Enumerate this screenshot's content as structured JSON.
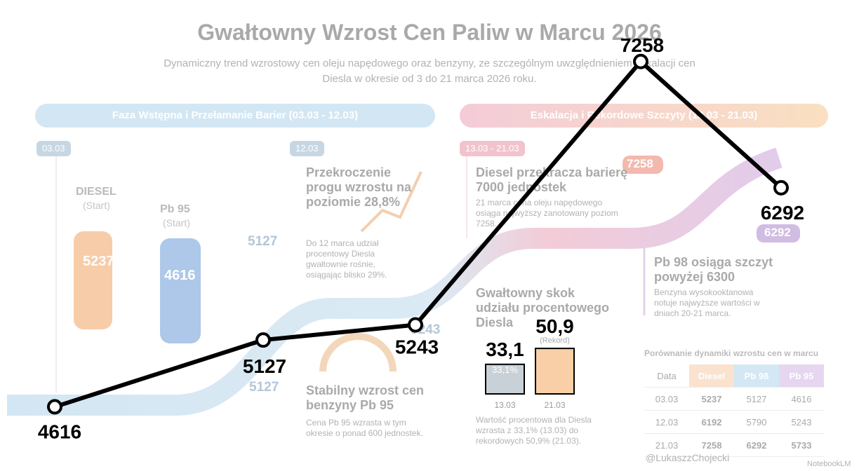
{
  "header": {
    "title": "Gwałtowny Wzrost Cen Paliw w Marcu 2026",
    "subtitle": "Dynamiczny trend wzrostowy cen oleju napędowego oraz benzyny, ze szczególnym uwzględnieniem eskalacji cen Diesla w okresie od 3 do 21 marca 2026 roku."
  },
  "phases": [
    "Faza Wstępna i Przełamanie Barier (03.03 - 12.03)",
    "Eskalacja i Rekordowe Szczyty (13.03 - 21.03)"
  ],
  "date_tags": [
    "03.03",
    "12.03",
    "13.03 - 21.03"
  ],
  "pumps": [
    {
      "name": "DIESEL",
      "note": "(Start)",
      "value": "5237"
    },
    {
      "name": "Pb 95",
      "note": "(Start)",
      "value": "4616"
    }
  ],
  "cards": [
    {
      "title": "Przekroczenie progu wzrostu na poziomie 28,8%",
      "text": "Do 12 marca udział procentowy Diesla gwałtownie rośnie, osiągając blisko 29%."
    },
    {
      "title": "Diesel przekracza barierę 7000 jednostek",
      "text": "21 marca cena oleju napędowego osiąga najwyższy zanotowany poziom 7258."
    },
    {
      "title": "Gwałtowny skok udziału procentowego Diesla",
      "text": "Wartość procentowa dla Diesla wzrasta z 33,1% (13.03) do rekordowych 50,9% (21.03)."
    },
    {
      "title": "Stabilny wzrost cen benzyny Pb 95",
      "text": "Cena Pb 95 wzrasta w tym okresie o ponad 600 jednostek."
    },
    {
      "title": "Pb 98 osiąga szczyt powyżej 6300",
      "text": "Benzyna wysokooktanowa notuje najwyższe wartości w dniach 20-21 marca."
    }
  ],
  "markers": [
    "5127",
    "5127",
    "5243",
    "7258",
    "6292"
  ],
  "table": {
    "title": "Porównanie dynamiki wzrostu cen w marcu",
    "header": [
      "Data",
      "Diesel",
      "Pb 98",
      "Pb 95"
    ],
    "rows": [
      [
        "03.03",
        "5237",
        "5127",
        "4616"
      ],
      [
        "12.03",
        "6192",
        "5790",
        "5243"
      ],
      [
        "21.03",
        "7258",
        "6292",
        "5733"
      ]
    ]
  },
  "footer": {
    "handle": "@LukaszzChojecki",
    "brand": "NotebookLM"
  },
  "chart_data": [
    {
      "type": "line",
      "values": [
        4616,
        5127,
        5243,
        7258,
        6292
      ],
      "color": "#000000",
      "ylim": [
        4200,
        7600
      ]
    },
    {
      "type": "bar",
      "categories": [
        "13.03",
        "21.03"
      ],
      "values": [
        33.1,
        50.9
      ],
      "value_labels": [
        "33,1",
        "50,9"
      ],
      "inner_label": "33,1%",
      "annotation": "(Rekord)",
      "colors": [
        "#c9d1d8",
        "#f8cfa6"
      ],
      "ylim": [
        0,
        60
      ]
    }
  ]
}
